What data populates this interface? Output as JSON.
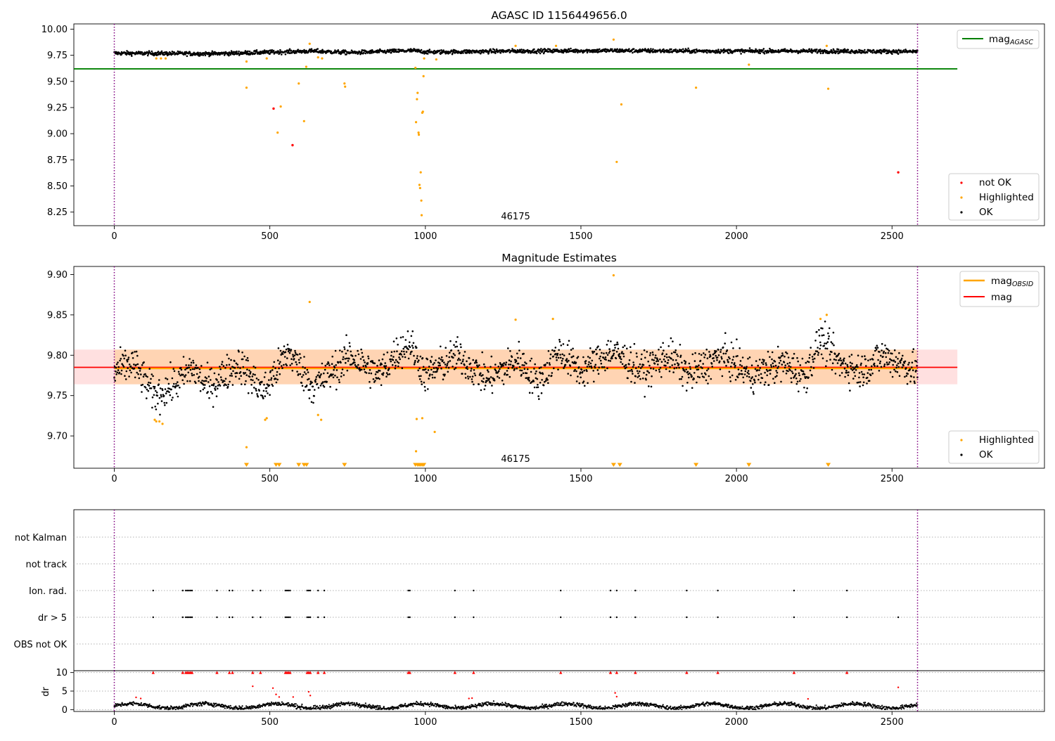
{
  "chart_data": [
    {
      "type": "scatter",
      "title": "AGASC ID 1156449656.0",
      "xlim": [
        -130,
        2990
      ],
      "ylim": [
        8.12,
        10.05
      ],
      "xticks": [
        0,
        500,
        1000,
        1500,
        2000,
        2500
      ],
      "xtick_labels": [
        "0",
        "500",
        "1000",
        "1500",
        "2000",
        "2500"
      ],
      "yticks": [
        8.25,
        8.5,
        8.75,
        9.0,
        9.25,
        9.5,
        9.75,
        10.0
      ],
      "ytick_labels": [
        "8.25",
        "8.50",
        "8.75",
        "9.00",
        "9.25",
        "9.50",
        "9.75",
        "10.00"
      ],
      "vlines": [
        0,
        2582
      ],
      "annotation": "46175",
      "annotation_x": 1290,
      "hline": {
        "name": "mag",
        "subscript": "AGASC",
        "y": 9.62,
        "xrange": [
          -130,
          2710
        ],
        "color": "#008000"
      },
      "baseline": {
        "segments": [
          [
            0,
            9.77
          ],
          [
            320,
            9.765
          ],
          [
            640,
            9.79
          ],
          [
            760,
            9.775
          ],
          [
            960,
            9.795
          ],
          [
            1010,
            9.78
          ],
          [
            1280,
            9.79
          ],
          [
            1600,
            9.795
          ],
          [
            1900,
            9.79
          ],
          [
            2260,
            9.79
          ],
          [
            2582,
            9.785
          ]
        ],
        "noise": 0.028,
        "color": "#000000"
      },
      "highlighted_points": [
        [
          135,
          9.72
        ],
        [
          150,
          9.72
        ],
        [
          165,
          9.72
        ],
        [
          425,
          9.69
        ],
        [
          425,
          9.44
        ],
        [
          490,
          9.72
        ],
        [
          525,
          9.01
        ],
        [
          535,
          9.26
        ],
        [
          593,
          9.48
        ],
        [
          610,
          9.12
        ],
        [
          617,
          9.64
        ],
        [
          628,
          9.86
        ],
        [
          655,
          9.73
        ],
        [
          668,
          9.72
        ],
        [
          740,
          9.48
        ],
        [
          742,
          9.45
        ],
        [
          968,
          9.63
        ],
        [
          970,
          9.11
        ],
        [
          973,
          9.33
        ],
        [
          975,
          9.39
        ],
        [
          978,
          9.01
        ],
        [
          979,
          8.99
        ],
        [
          981,
          8.51
        ],
        [
          983,
          8.48
        ],
        [
          985,
          8.63
        ],
        [
          987,
          8.36
        ],
        [
          988,
          8.22
        ],
        [
          990,
          9.2
        ],
        [
          992,
          9.21
        ],
        [
          994,
          9.55
        ],
        [
          996,
          9.72
        ],
        [
          1035,
          9.71
        ],
        [
          1290,
          9.84
        ],
        [
          1420,
          9.84
        ],
        [
          1605,
          9.9
        ],
        [
          1615,
          8.73
        ],
        [
          1630,
          9.28
        ],
        [
          1870,
          9.44
        ],
        [
          2040,
          9.66
        ],
        [
          2290,
          9.84
        ],
        [
          2295,
          9.43
        ]
      ],
      "notok_points": [
        [
          512,
          9.24
        ],
        [
          573,
          8.89
        ],
        [
          2520,
          8.63
        ]
      ],
      "legends": [
        {
          "label": "mag",
          "subscript": "AGASC",
          "kind": "line",
          "color": "#008000"
        },
        {
          "label": "not OK",
          "kind": "marker",
          "color": "#ff0000"
        },
        {
          "label": "Highlighted",
          "kind": "marker",
          "color": "#ffa500"
        },
        {
          "label": "OK",
          "kind": "marker",
          "color": "#000000"
        }
      ]
    },
    {
      "type": "scatter",
      "title": "Magnitude Estimates",
      "xlim": [
        -130,
        2990
      ],
      "ylim": [
        9.66,
        9.91
      ],
      "xticks": [
        0,
        500,
        1000,
        1500,
        2000,
        2500
      ],
      "xtick_labels": [
        "0",
        "500",
        "1000",
        "1500",
        "2000",
        "2500"
      ],
      "yticks": [
        9.7,
        9.75,
        9.8,
        9.85,
        9.9
      ],
      "ytick_labels": [
        "9.70",
        "9.75",
        "9.80",
        "9.85",
        "9.90"
      ],
      "vlines": [
        0,
        2582
      ],
      "annotation": "46175",
      "annotation_x": 1290,
      "mag_line": {
        "name": "mag",
        "y": 9.785,
        "color": "#ff0000"
      },
      "mag_obsid_line": {
        "name": "mag",
        "subscript": "OBSID",
        "y": 9.785,
        "xrange": [
          0,
          2582
        ],
        "color": "#ffa500"
      },
      "band": {
        "ymin": 9.764,
        "ymax": 9.807,
        "xrange": [
          -130,
          2710
        ]
      },
      "obsid_band": {
        "ymin": 9.764,
        "ymax": 9.807,
        "xrange": [
          0,
          2582
        ]
      },
      "baseline": {
        "segments": [
          [
            0,
            9.78
          ],
          [
            60,
            9.79
          ],
          [
            130,
            9.75
          ],
          [
            200,
            9.765
          ],
          [
            250,
            9.785
          ],
          [
            300,
            9.76
          ],
          [
            400,
            9.79
          ],
          [
            480,
            9.755
          ],
          [
            560,
            9.805
          ],
          [
            640,
            9.76
          ],
          [
            700,
            9.78
          ],
          [
            760,
            9.8
          ],
          [
            850,
            9.775
          ],
          [
            900,
            9.8
          ],
          [
            950,
            9.815
          ],
          [
            1000,
            9.775
          ],
          [
            1100,
            9.8
          ],
          [
            1200,
            9.77
          ],
          [
            1300,
            9.795
          ],
          [
            1360,
            9.765
          ],
          [
            1430,
            9.805
          ],
          [
            1500,
            9.78
          ],
          [
            1600,
            9.805
          ],
          [
            1700,
            9.78
          ],
          [
            1780,
            9.8
          ],
          [
            1850,
            9.775
          ],
          [
            1950,
            9.8
          ],
          [
            2050,
            9.775
          ],
          [
            2150,
            9.79
          ],
          [
            2220,
            9.775
          ],
          [
            2270,
            9.82
          ],
          [
            2330,
            9.79
          ],
          [
            2400,
            9.78
          ],
          [
            2470,
            9.8
          ],
          [
            2582,
            9.78
          ]
        ],
        "noise": 0.02,
        "color": "#000000"
      },
      "highlighted_points": [
        [
          130,
          9.72
        ],
        [
          135,
          9.718
        ],
        [
          145,
          9.718
        ],
        [
          155,
          9.715
        ],
        [
          425,
          9.686
        ],
        [
          485,
          9.72
        ],
        [
          490,
          9.722
        ],
        [
          628,
          9.866
        ],
        [
          655,
          9.726
        ],
        [
          665,
          9.72
        ],
        [
          970,
          9.681
        ],
        [
          972,
          9.721
        ],
        [
          990,
          9.722
        ],
        [
          1030,
          9.705
        ],
        [
          1290,
          9.844
        ],
        [
          1410,
          9.845
        ],
        [
          1605,
          9.899
        ],
        [
          2270,
          9.845
        ],
        [
          2290,
          9.85
        ]
      ],
      "offscale_markers": [
        425,
        520,
        530,
        593,
        610,
        618,
        740,
        968,
        975,
        980,
        985,
        990,
        995,
        1605,
        1625,
        1870,
        2040,
        2295
      ],
      "legends": [
        {
          "label": "mag",
          "subscript": "OBSID",
          "kind": "line",
          "color": "#ffa500"
        },
        {
          "label": "mag",
          "kind": "line",
          "color": "#ff0000"
        },
        {
          "label": "Highlighted",
          "kind": "marker",
          "color": "#ffa500"
        },
        {
          "label": "OK",
          "kind": "marker",
          "color": "#000000"
        }
      ]
    },
    {
      "type": "scatter",
      "title": "",
      "xlim": [
        -130,
        2990
      ],
      "categories": [
        "not Kalman",
        "not track",
        "Ion. rad.",
        "dr > 5",
        "OBS not OK"
      ],
      "vlines": [
        0,
        2582
      ],
      "ion_rad_x": [
        125,
        220,
        230,
        235,
        240,
        245,
        250,
        330,
        370,
        380,
        445,
        470,
        550,
        555,
        560,
        565,
        620,
        625,
        630,
        655,
        675,
        945,
        950,
        1095,
        1155,
        1435,
        1595,
        1615,
        1675,
        1840,
        1940,
        2185,
        2355
      ],
      "dr5_x": [
        125,
        220,
        230,
        235,
        240,
        245,
        250,
        330,
        370,
        380,
        445,
        470,
        550,
        555,
        560,
        565,
        620,
        625,
        630,
        655,
        675,
        945,
        950,
        1095,
        1155,
        1435,
        1595,
        1615,
        1675,
        1840,
        1940,
        2185,
        2355,
        2520
      ]
    },
    {
      "type": "scatter",
      "ylabel": "dr",
      "xlim": [
        -130,
        2990
      ],
      "ylim": [
        -0.5,
        10.5
      ],
      "xticks": [
        0,
        500,
        1000,
        1500,
        2000,
        2500
      ],
      "xtick_labels": [
        "0",
        "500",
        "1000",
        "1500",
        "2000",
        "2500"
      ],
      "yticks": [
        0,
        5,
        10
      ],
      "ytick_labels": [
        "0",
        "5",
        "10"
      ],
      "vlines": [
        0,
        2582
      ],
      "baseline": {
        "mean": 1.0,
        "noise": 0.55
      },
      "clipped_markers_x": [
        125,
        220,
        230,
        235,
        240,
        245,
        250,
        330,
        370,
        380,
        445,
        470,
        550,
        555,
        560,
        565,
        620,
        625,
        630,
        655,
        675,
        945,
        950,
        1095,
        1155,
        1435,
        1595,
        1615,
        1675,
        1840,
        1940,
        2185,
        2355
      ],
      "red_points": [
        [
          70,
          3.3
        ],
        [
          85,
          3.0
        ],
        [
          445,
          6.3
        ],
        [
          510,
          5.8
        ],
        [
          520,
          4.1
        ],
        [
          530,
          3.4
        ],
        [
          575,
          3.4
        ],
        [
          625,
          4.8
        ],
        [
          630,
          3.8
        ],
        [
          1140,
          3.0
        ],
        [
          1150,
          3.1
        ],
        [
          1610,
          4.5
        ],
        [
          1615,
          3.5
        ],
        [
          2230,
          2.9
        ],
        [
          2520,
          6.0
        ]
      ]
    }
  ]
}
